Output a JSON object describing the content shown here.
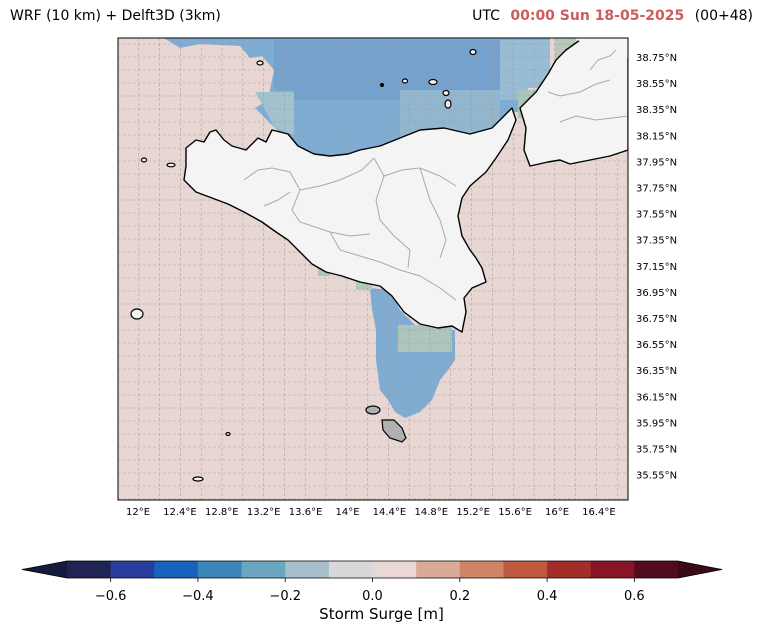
{
  "header": {
    "model_title": "WRF (10 km) + Delft3D (3km)",
    "utc_label": "UTC",
    "valid_time": "00:00 Sun 18-05-2025",
    "forecast_step": "(00+48)"
  },
  "map": {
    "lat_labels": [
      "38.75°N",
      "38.55°N",
      "38.35°N",
      "38.15°N",
      "37.95°N",
      "37.75°N",
      "37.55°N",
      "37.35°N",
      "37.15°N",
      "36.95°N",
      "36.75°N",
      "36.55°N",
      "36.35°N",
      "36.15°N",
      "35.95°N",
      "35.75°N",
      "35.55°N"
    ],
    "lon_labels": [
      "12°E",
      "12.4°E",
      "12.8°E",
      "13.2°E",
      "13.6°E",
      "14°E",
      "14.4°E",
      "14.8°E",
      "15.2°E",
      "15.6°E",
      "16°E",
      "16.4°E"
    ],
    "colors": {
      "sea_background": "#e8d6d3",
      "land": "#f4f4f4",
      "coastline": "#000000",
      "borders": "#a9a9a9",
      "grid": "#9a9a9a"
    }
  },
  "colorbar": {
    "label": "Storm Surge [m]",
    "tick_labels": [
      "−0.6",
      "−0.4",
      "−0.2",
      "0.0",
      "0.2",
      "0.4",
      "0.6"
    ],
    "colors": [
      "#1f2454",
      "#283e9e",
      "#1762c0",
      "#3a86b8",
      "#6aa6c0",
      "#a5bfcb",
      "#d8d8da",
      "#e9d8d5",
      "#d9aa95",
      "#cf8466",
      "#bf5a3f",
      "#a42d29",
      "#891428",
      "#510d1e"
    ],
    "under_color": "#131a3c",
    "over_color": "#3a0a15"
  }
}
